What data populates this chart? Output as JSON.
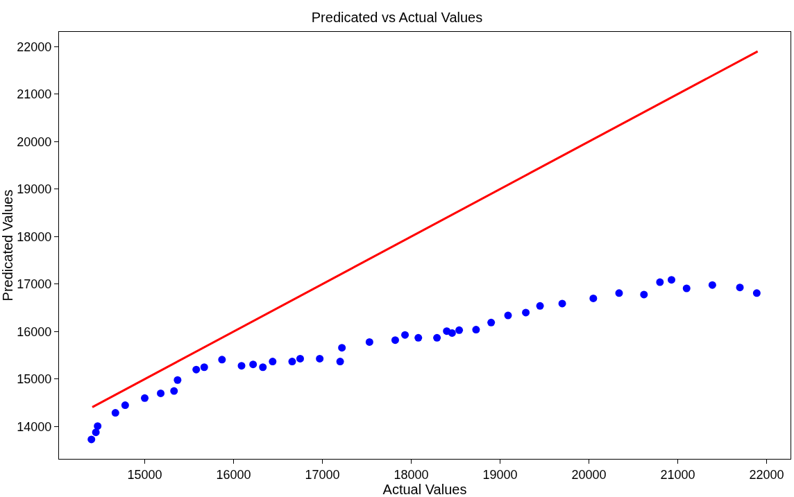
{
  "chart_data": {
    "type": "scatter",
    "title": "Predicated vs Actual Values",
    "xlabel": "Actual Values",
    "ylabel": "Predicated Values",
    "xlim": [
      14035,
      22270
    ],
    "ylim": [
      13320,
      22310
    ],
    "xticks": [
      15000,
      16000,
      17000,
      18000,
      19000,
      20000,
      21000,
      22000
    ],
    "yticks": [
      14000,
      15000,
      16000,
      17000,
      18000,
      19000,
      20000,
      21000,
      22000
    ],
    "series": [
      {
        "type": "line",
        "color": "#ff0000",
        "marker": "none",
        "line_style": "solid",
        "x": [
          14410,
          21900
        ],
        "values": [
          14410,
          21900
        ]
      },
      {
        "color": "#0000ff",
        "marker": "circle",
        "x": [
          14400,
          14450,
          14470,
          14670,
          14780,
          15000,
          15180,
          15330,
          15370,
          15580,
          15670,
          15870,
          16090,
          16220,
          16330,
          16440,
          16660,
          16750,
          16970,
          17200,
          17220,
          17530,
          17820,
          17930,
          18080,
          18290,
          18400,
          18460,
          18540,
          18730,
          18900,
          19090,
          19290,
          19450,
          19700,
          20050,
          20340,
          20620,
          20800,
          20930,
          21100,
          21390,
          21700,
          21890
        ],
        "values": [
          13730,
          13880,
          14010,
          14290,
          14450,
          14600,
          14700,
          14750,
          14980,
          15200,
          15250,
          15410,
          15280,
          15310,
          15250,
          15370,
          15370,
          15430,
          15430,
          15370,
          15660,
          15780,
          15820,
          15930,
          15870,
          15870,
          16010,
          15970,
          16030,
          16040,
          16190,
          16340,
          16400,
          16540,
          16590,
          16700,
          16810,
          16780,
          17040,
          17090,
          16910,
          16980,
          16930,
          16810
        ]
      }
    ]
  }
}
